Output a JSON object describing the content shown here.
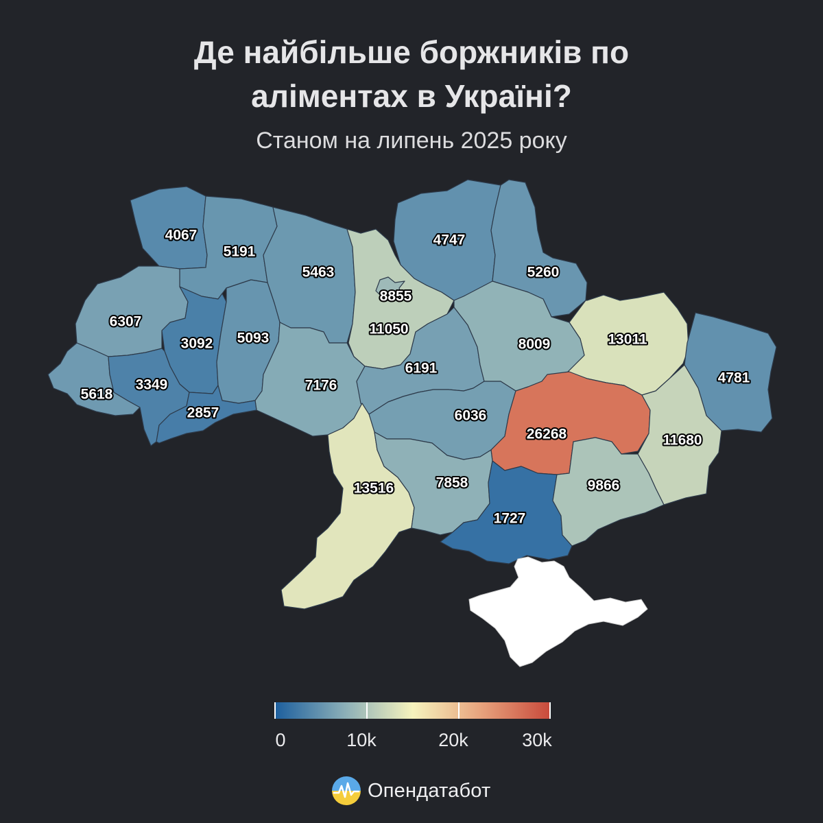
{
  "title_lines": [
    "Де найбільше боржників по",
    "аліментах в Україні?"
  ],
  "subtitle": "Станом на липень 2025 року",
  "brand": {
    "name": "Опендатабот",
    "icon": "opendatabot-logo-icon"
  },
  "colors": {
    "background": "#222429",
    "crimea": "#ffffff",
    "scale": [
      "#1d5f9e",
      "#8aaeb7",
      "#f6f3bd",
      "#e7a27c",
      "#c8493b"
    ]
  },
  "legend": {
    "ticks": [
      {
        "value": 0,
        "label": "0"
      },
      {
        "value": 10000,
        "label": "10k"
      },
      {
        "value": 20000,
        "label": "20k"
      },
      {
        "value": 30000,
        "label": "30k"
      }
    ],
    "min": 0,
    "max": 30000
  },
  "regions": [
    {
      "id": "volyn",
      "value": 4067,
      "label": "4067"
    },
    {
      "id": "rivne",
      "value": 5191,
      "label": "5191"
    },
    {
      "id": "zhytomyr",
      "value": 5463,
      "label": "5463"
    },
    {
      "id": "kyiv_oblast",
      "value": 11050,
      "label": "11050"
    },
    {
      "id": "kyiv_city",
      "value": 8855,
      "label": "8855"
    },
    {
      "id": "chernihiv",
      "value": 4747,
      "label": "4747"
    },
    {
      "id": "sumy",
      "value": 5260,
      "label": "5260"
    },
    {
      "id": "kharkiv",
      "value": 13011,
      "label": "13011"
    },
    {
      "id": "luhansk",
      "value": 4781,
      "label": "4781"
    },
    {
      "id": "lviv",
      "value": 6307,
      "label": "6307"
    },
    {
      "id": "ternopil",
      "value": 3092,
      "label": "3092"
    },
    {
      "id": "khmelnytskyi",
      "value": 5093,
      "label": "5093"
    },
    {
      "id": "vinnytsia",
      "value": 7176,
      "label": "7176"
    },
    {
      "id": "cherkasy",
      "value": 6191,
      "label": "6191"
    },
    {
      "id": "poltava",
      "value": 8009,
      "label": "8009"
    },
    {
      "id": "zakarpattia",
      "value": 5618,
      "label": "5618"
    },
    {
      "id": "ivano_frankivsk",
      "value": 3349,
      "label": "3349"
    },
    {
      "id": "chernivtsi",
      "value": 2857,
      "label": "2857"
    },
    {
      "id": "kirovohrad",
      "value": 6036,
      "label": "6036"
    },
    {
      "id": "dnipropetrovsk",
      "value": 26268,
      "label": "26268"
    },
    {
      "id": "donetsk",
      "value": 11680,
      "label": "11680"
    },
    {
      "id": "odesa",
      "value": 13516,
      "label": "13516"
    },
    {
      "id": "mykolaiv",
      "value": 7858,
      "label": "7858"
    },
    {
      "id": "kherson",
      "value": 1727,
      "label": "1727"
    },
    {
      "id": "zaporizhzhia",
      "value": 9866,
      "label": "9866"
    }
  ]
}
